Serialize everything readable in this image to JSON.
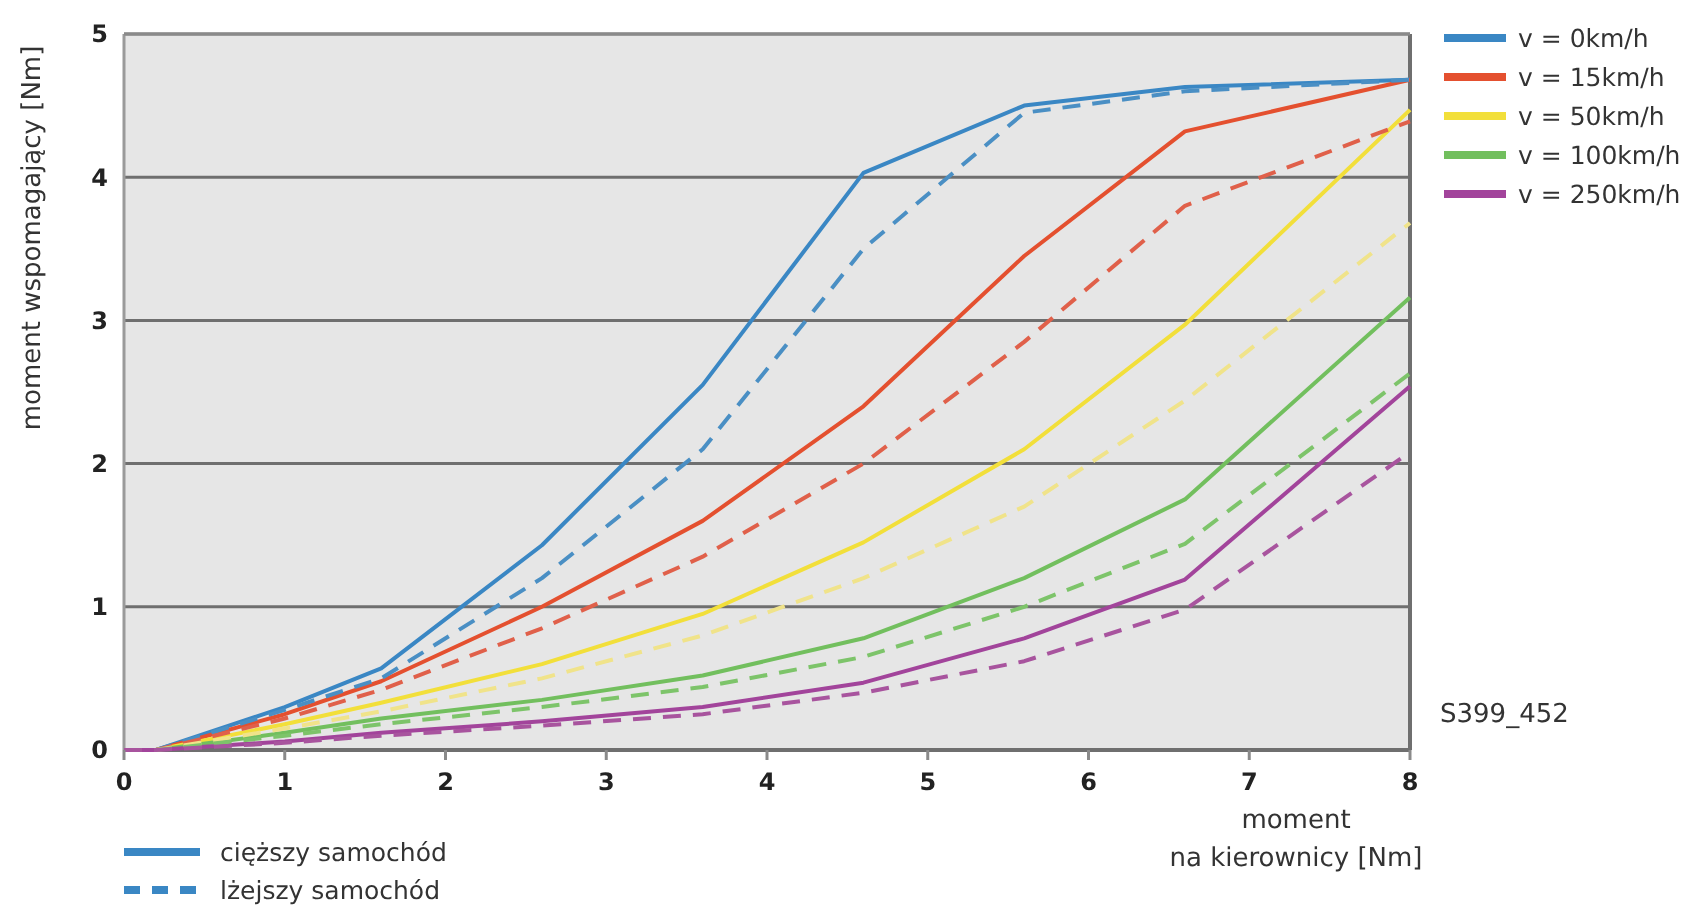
{
  "chart_data": {
    "type": "line",
    "xlabel": "moment\nna kierownicy [Nm]",
    "ylabel": "moment wspomagający [Nm]",
    "x": [
      0,
      0.2,
      1,
      1.6,
      2.6,
      3.6,
      4.6,
      5.6,
      6.6,
      8
    ],
    "series": [
      {
        "name": "v = 0km/h",
        "color": "#3a87c4",
        "line_style": "solid",
        "values": [
          0,
          0,
          0.3,
          0.57,
          1.43,
          2.55,
          4.03,
          4.5,
          4.63,
          4.68
        ]
      },
      {
        "name": "v = 15km/h",
        "color": "#e4502f",
        "line_style": "solid",
        "values": [
          0,
          0,
          0.25,
          0.48,
          1.0,
          1.6,
          2.4,
          3.45,
          4.32,
          4.68
        ]
      },
      {
        "name": "v = 50km/h",
        "color": "#f2df3a",
        "line_style": "solid",
        "values": [
          0,
          0,
          0.18,
          0.33,
          0.6,
          0.95,
          1.45,
          2.1,
          2.97,
          4.47
        ]
      },
      {
        "name": "v = 100km/h",
        "color": "#72bf5e",
        "line_style": "solid",
        "values": [
          0,
          0,
          0.12,
          0.22,
          0.35,
          0.52,
          0.78,
          1.2,
          1.75,
          3.16
        ]
      },
      {
        "name": "v = 250km/h",
        "color": "#a2449b",
        "line_style": "solid",
        "values": [
          0,
          0,
          0.06,
          0.12,
          0.2,
          0.3,
          0.47,
          0.78,
          1.19,
          2.54
        ]
      },
      {
        "color": "#4a8fc4",
        "line_style": "dashed",
        "values": [
          0,
          0,
          0.28,
          0.5,
          1.2,
          2.1,
          3.5,
          4.45,
          4.6,
          4.68
        ]
      },
      {
        "color": "#e0604a",
        "line_style": "dashed",
        "values": [
          0,
          0,
          0.22,
          0.42,
          0.85,
          1.35,
          2.0,
          2.85,
          3.8,
          4.39
        ]
      },
      {
        "color": "#f0e38a",
        "line_style": "dashed",
        "values": [
          0,
          0,
          0.15,
          0.27,
          0.5,
          0.8,
          1.2,
          1.7,
          2.44,
          3.68
        ]
      },
      {
        "color": "#7dc46a",
        "line_style": "dashed",
        "values": [
          0,
          0,
          0.1,
          0.18,
          0.3,
          0.44,
          0.65,
          1.0,
          1.44,
          2.63
        ]
      },
      {
        "color": "#a8549e",
        "line_style": "dashed",
        "values": [
          0,
          0,
          0.05,
          0.1,
          0.17,
          0.25,
          0.4,
          0.62,
          0.98,
          2.08
        ]
      }
    ],
    "xlim": [
      0,
      8
    ],
    "ylim": [
      0,
      5
    ],
    "xticks": [
      0,
      1,
      2,
      3,
      4,
      5,
      6,
      7,
      8
    ],
    "yticks": [
      0,
      1,
      2,
      3,
      4,
      5
    ],
    "grid": "y",
    "legend": "top right",
    "annotations": [
      "cięższy samochód",
      "lżejszy samochód",
      "S399_452"
    ]
  }
}
